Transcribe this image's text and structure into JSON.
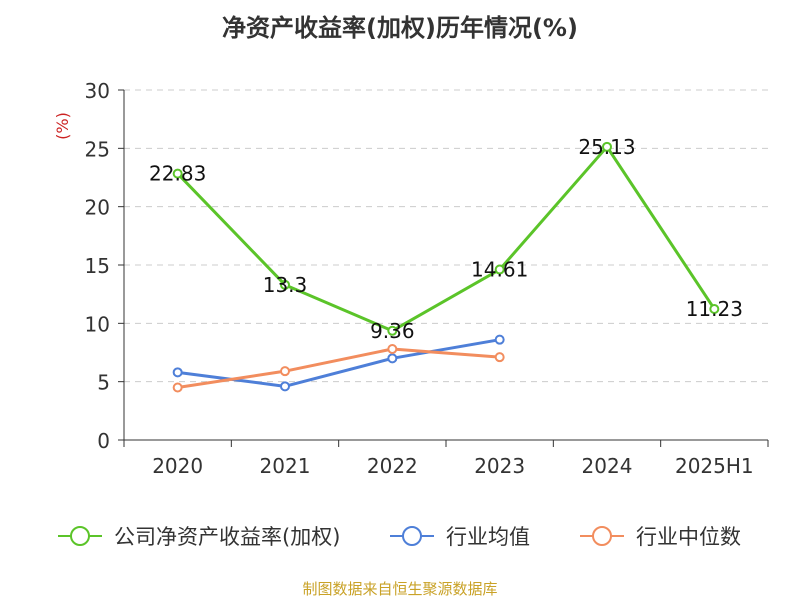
{
  "chart_data": {
    "type": "line",
    "title": "净资产收益率(加权)历年情况(%)",
    "ylabel": "(%)",
    "categories": [
      "2020",
      "2021",
      "2022",
      "2023",
      "2024",
      "2025H1"
    ],
    "ylim": [
      0,
      30
    ],
    "yticks": [
      0,
      5,
      10,
      15,
      20,
      25,
      30
    ],
    "grid": true,
    "legend_position": "bottom",
    "series": [
      {
        "name": "公司净资产收益率(加权)",
        "color": "#5bc429",
        "values": [
          22.83,
          13.3,
          9.36,
          14.61,
          25.13,
          11.23
        ],
        "labels": [
          "22.83",
          "13.3",
          "9.36",
          "14.61",
          "25.13",
          "11.23"
        ]
      },
      {
        "name": "行业均值",
        "color": "#4e7fd8",
        "values": [
          5.8,
          4.6,
          7.0,
          8.6,
          null,
          null
        ],
        "labels": []
      },
      {
        "name": "行业中位数",
        "color": "#f28d5e",
        "values": [
          4.5,
          5.9,
          7.8,
          7.1,
          null,
          null
        ],
        "labels": []
      }
    ]
  },
  "footer": "制图数据来自恒生聚源数据库"
}
